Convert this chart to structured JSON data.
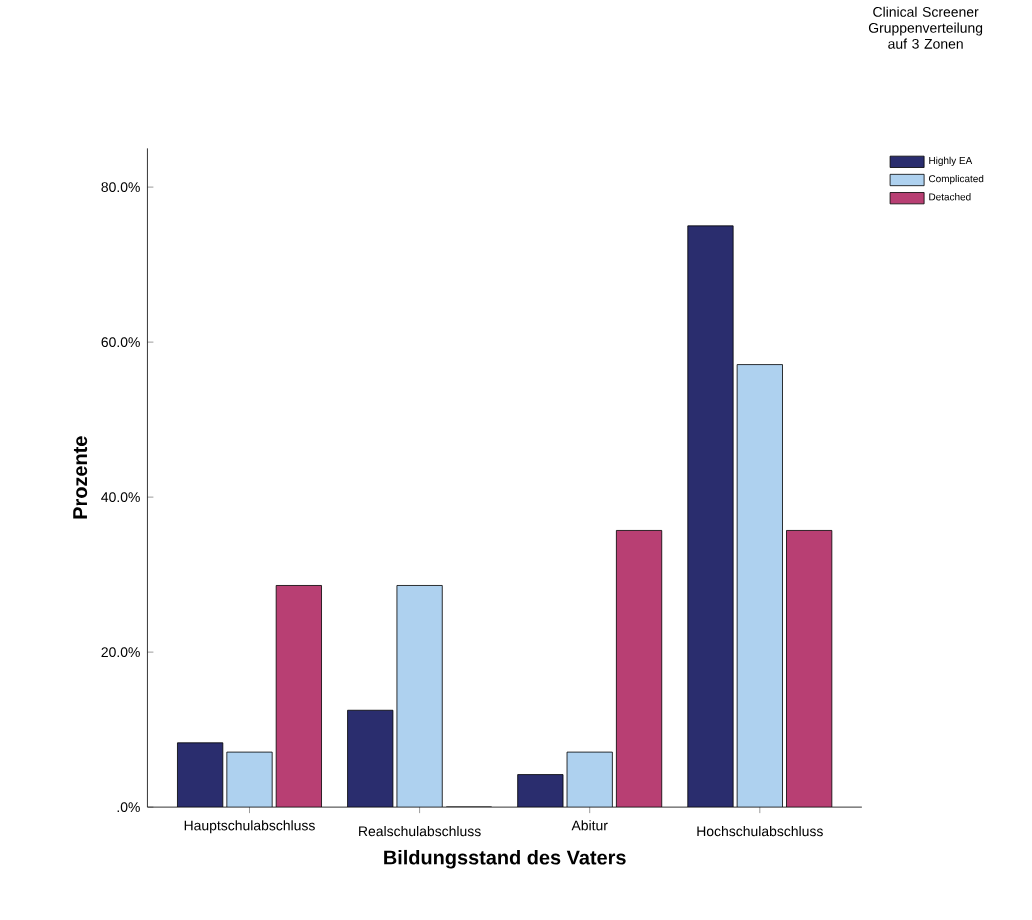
{
  "chart_data": {
    "type": "bar",
    "xlabel": "Bildungsstand des Vaters",
    "ylabel": "Prozente",
    "legend_title": "Clinical Screener Gruppenverteilung auf 3 Zonen",
    "categories": [
      "Hauptschulabschluss",
      "Realschulabschluss",
      "Abitur",
      "Hochschulabschluss"
    ],
    "series": [
      {
        "name": "Highly EA",
        "color": "#2a2d6e",
        "values": [
          8.3,
          12.5,
          4.2,
          75.0
        ]
      },
      {
        "name": "Complicated",
        "color": "#aed1ef",
        "values": [
          7.1,
          28.6,
          7.1,
          57.1
        ]
      },
      {
        "name": "Detached",
        "color": "#b83f73",
        "values": [
          28.6,
          0,
          35.7,
          35.7
        ]
      }
    ],
    "ylim": [
      0,
      85
    ],
    "yticks": [
      {
        "value": 0,
        "label": ".0%"
      },
      {
        "value": 20,
        "label": "20.0%"
      },
      {
        "value": 40,
        "label": "40.0%"
      },
      {
        "value": 60,
        "label": "60.0%"
      },
      {
        "value": 80,
        "label": "80.0%"
      }
    ],
    "legend": "right",
    "grid": false
  }
}
